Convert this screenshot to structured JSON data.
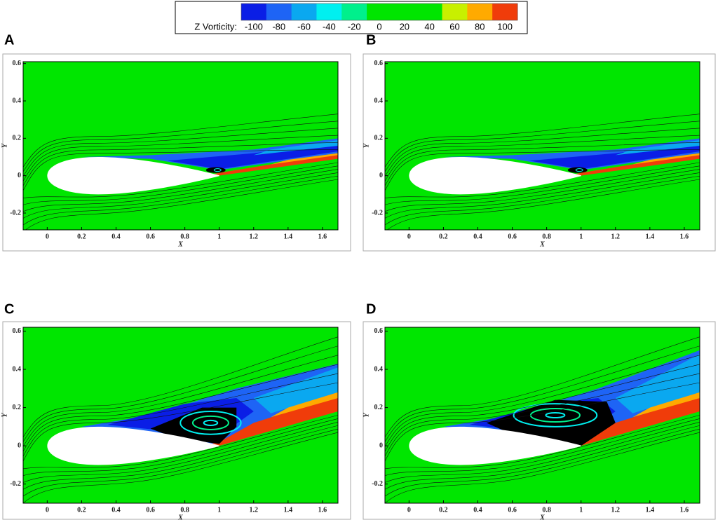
{
  "chart_data": [
    {
      "type": "colorbar",
      "title": "Z Vorticity:",
      "levels": [
        -100,
        -80,
        -60,
        -40,
        -20,
        0,
        20,
        40,
        60,
        80,
        100
      ],
      "colors": [
        "#0a1ee6",
        "#1e64f5",
        "#0aa8f0",
        "#00f0f0",
        "#00f08c",
        "#00e600",
        "#00e600",
        "#00e600",
        "#c8f000",
        "#ffaa00",
        "#f03c0a"
      ]
    },
    {
      "type": "contour",
      "label": "A",
      "xlabel": "X",
      "ylabel": "Y",
      "xlim": [
        -0.14,
        1.69
      ],
      "ylim": [
        -0.29,
        0.61
      ],
      "xticks": [
        0,
        0.2,
        0.4,
        0.6,
        0.8,
        1,
        1.2,
        1.4,
        1.6
      ],
      "yticks": [
        -0.2,
        0,
        0.2,
        0.4,
        0.6
      ]
    },
    {
      "type": "contour",
      "label": "B",
      "xlabel": "X",
      "ylabel": "Y",
      "xlim": [
        -0.14,
        1.69
      ],
      "ylim": [
        -0.29,
        0.61
      ],
      "xticks": [
        0,
        0.2,
        0.4,
        0.6,
        0.8,
        1,
        1.2,
        1.4,
        1.6
      ],
      "yticks": [
        -0.2,
        0,
        0.2,
        0.4,
        0.6
      ]
    },
    {
      "type": "contour",
      "label": "C",
      "xlabel": "X",
      "ylabel": "Y",
      "xlim": [
        -0.14,
        1.69
      ],
      "ylim": [
        -0.3,
        0.62
      ],
      "xticks": [
        0,
        0.2,
        0.4,
        0.6,
        0.8,
        1,
        1.2,
        1.4,
        1.6
      ],
      "yticks": [
        -0.2,
        0,
        0.2,
        0.4,
        0.6
      ]
    },
    {
      "type": "contour",
      "label": "D",
      "xlabel": "X",
      "ylabel": "Y",
      "xlim": [
        -0.14,
        1.69
      ],
      "ylim": [
        -0.3,
        0.62
      ],
      "xticks": [
        0,
        0.2,
        0.4,
        0.6,
        0.8,
        1,
        1.2,
        1.4,
        1.6
      ],
      "yticks": [
        -0.2,
        0,
        0.2,
        0.4,
        0.6
      ]
    }
  ]
}
